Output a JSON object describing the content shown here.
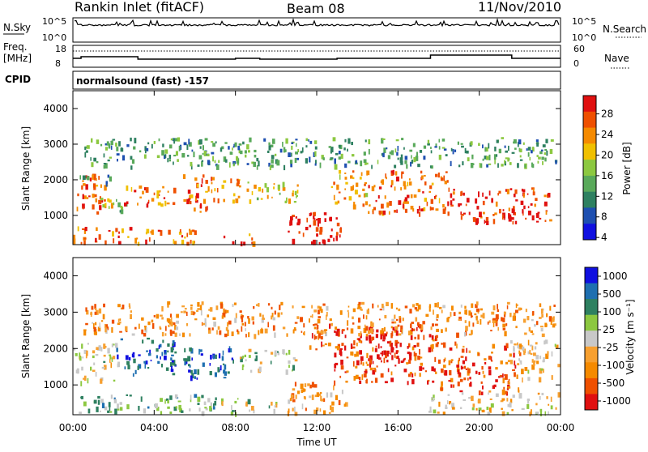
{
  "header": {
    "station": "Rankin Inlet (fitACF)",
    "beam": "Beam 08",
    "date": "11/Nov/2010"
  },
  "noise_panel": {
    "left_label": "N.Sky",
    "right_label": "N.Search",
    "left_ticks": [
      "10^5",
      "10^0"
    ],
    "right_ticks": [
      "10^5",
      "10^0"
    ]
  },
  "freq_panel": {
    "left_label_line1": "Freq.",
    "left_label_line2": "[MHz]",
    "right_label": "Nave",
    "left_ticks": [
      "18",
      "8"
    ],
    "right_ticks": [
      "60",
      "0"
    ]
  },
  "cpid": {
    "label": "CPID",
    "mode": "normalsound (fast) -157"
  },
  "colors": {
    "power_scale": [
      "#1010e0",
      "#1e4fb0",
      "#2e8060",
      "#59a95a",
      "#8cc840",
      "#f0c000",
      "#f58a00",
      "#ef5000",
      "#e01010"
    ],
    "velocity_scale": [
      "#e01010",
      "#ef5000",
      "#f58a00",
      "#f7a030",
      "#c8c8c8",
      "#8cc840",
      "#2e8060",
      "#1e6fb0",
      "#1010e0"
    ]
  },
  "chart_data": [
    {
      "type": "heatmap",
      "name_key": "power",
      "title": "",
      "xlabel": "",
      "ylabel": "Slant Range [km]",
      "x_ticks": [
        "00:00",
        "04:00",
        "08:00",
        "12:00",
        "16:00",
        "20:00",
        "00:00"
      ],
      "y_ticks": [
        "1000",
        "2000",
        "3000",
        "4000"
      ],
      "xlim": [
        0,
        24
      ],
      "ylim": [
        180,
        4500
      ],
      "colorbar": {
        "label": "Power [dB]",
        "ticks": [
          "28",
          "24",
          "20",
          "16",
          "12",
          "8",
          "4"
        ],
        "range": [
          0,
          30
        ]
      },
      "bands": [
        {
          "t0": 0.0,
          "t1": 1.9,
          "r0": 1100,
          "r1": 2200,
          "level": 0.8
        },
        {
          "t0": 0.2,
          "t1": 1.8,
          "r0": 1900,
          "r1": 2150,
          "level": 0.35
        },
        {
          "t0": 1.3,
          "t1": 2.6,
          "r0": 1050,
          "r1": 1500,
          "level": 0.45
        },
        {
          "t0": 2.5,
          "t1": 5.0,
          "r0": 1300,
          "r1": 1900,
          "level": 0.78
        },
        {
          "t0": 5.4,
          "t1": 6.8,
          "r0": 1100,
          "r1": 2200,
          "level": 0.82
        },
        {
          "t0": 6.8,
          "t1": 8.2,
          "r0": 1400,
          "r1": 2100,
          "level": 0.7
        },
        {
          "t0": 8.5,
          "t1": 11.2,
          "r0": 1400,
          "r1": 2000,
          "level": 0.6
        },
        {
          "t0": 12.7,
          "t1": 14.5,
          "r0": 1300,
          "r1": 2300,
          "level": 0.72
        },
        {
          "t0": 14.5,
          "t1": 18.5,
          "r0": 1100,
          "r1": 2300,
          "level": 0.78
        },
        {
          "t0": 18.5,
          "t1": 23.5,
          "r0": 800,
          "r1": 1800,
          "level": 0.92
        },
        {
          "t0": 0.0,
          "t1": 6.0,
          "r0": 250,
          "r1": 700,
          "level": 0.75
        },
        {
          "t0": 7.4,
          "t1": 9.0,
          "r0": 250,
          "r1": 500,
          "level": 0.8
        },
        {
          "t0": 10.4,
          "t1": 13.2,
          "r0": 250,
          "r1": 1100,
          "level": 0.95
        },
        {
          "t0": 0.5,
          "t1": 23.8,
          "r0": 2400,
          "r1": 3200,
          "level": 0.35
        }
      ]
    },
    {
      "type": "heatmap",
      "name_key": "velocity",
      "title": "",
      "xlabel": "Time UT",
      "ylabel": "Slant Range [km]",
      "x_ticks": [
        "00:00",
        "04:00",
        "08:00",
        "12:00",
        "16:00",
        "20:00",
        "00:00"
      ],
      "y_ticks": [
        "1000",
        "2000",
        "3000",
        "4000"
      ],
      "xlim": [
        0,
        24
      ],
      "ylim": [
        180,
        4500
      ],
      "colorbar": {
        "label": "Velocity [m s⁻¹]",
        "ticks": [
          "1000",
          "500",
          "100",
          "25",
          "-25",
          "-100",
          "-500",
          "-1000"
        ],
        "range": [
          -1000,
          1000
        ]
      },
      "bands": [
        {
          "t0": 0.0,
          "t1": 2.2,
          "r0": 1100,
          "r1": 2200,
          "level": 0.5
        },
        {
          "t0": 2.0,
          "t1": 5.0,
          "r0": 1300,
          "r1": 2300,
          "level": 0.85
        },
        {
          "t0": 5.4,
          "t1": 8.0,
          "r0": 1200,
          "r1": 2100,
          "level": 0.85
        },
        {
          "t0": 8.2,
          "t1": 11.0,
          "r0": 1400,
          "r1": 2000,
          "level": 0.55
        },
        {
          "t0": 11.5,
          "t1": 12.6,
          "r0": 2000,
          "r1": 2700,
          "level": 0.2
        },
        {
          "t0": 12.8,
          "t1": 18.0,
          "r0": 1100,
          "r1": 2600,
          "level": 0.15
        },
        {
          "t0": 14.5,
          "t1": 17.0,
          "r0": 1600,
          "r1": 2700,
          "level": 0.05
        },
        {
          "t0": 18.0,
          "t1": 22.0,
          "r0": 800,
          "r1": 2200,
          "level": 0.18
        },
        {
          "t0": 21.5,
          "t1": 24.0,
          "r0": 1200,
          "r1": 2300,
          "level": 0.4
        },
        {
          "t0": 0.0,
          "t1": 7.0,
          "r0": 250,
          "r1": 750,
          "level": 0.62
        },
        {
          "t0": 7.2,
          "t1": 10.0,
          "r0": 250,
          "r1": 650,
          "level": 0.55
        },
        {
          "t0": 10.4,
          "t1": 13.4,
          "r0": 250,
          "r1": 1100,
          "level": 0.3
        },
        {
          "t0": 17.5,
          "t1": 24.0,
          "r0": 250,
          "r1": 800,
          "level": 0.45
        },
        {
          "t0": 0.5,
          "t1": 23.8,
          "r0": 2400,
          "r1": 3300,
          "level": 0.3
        }
      ]
    }
  ]
}
